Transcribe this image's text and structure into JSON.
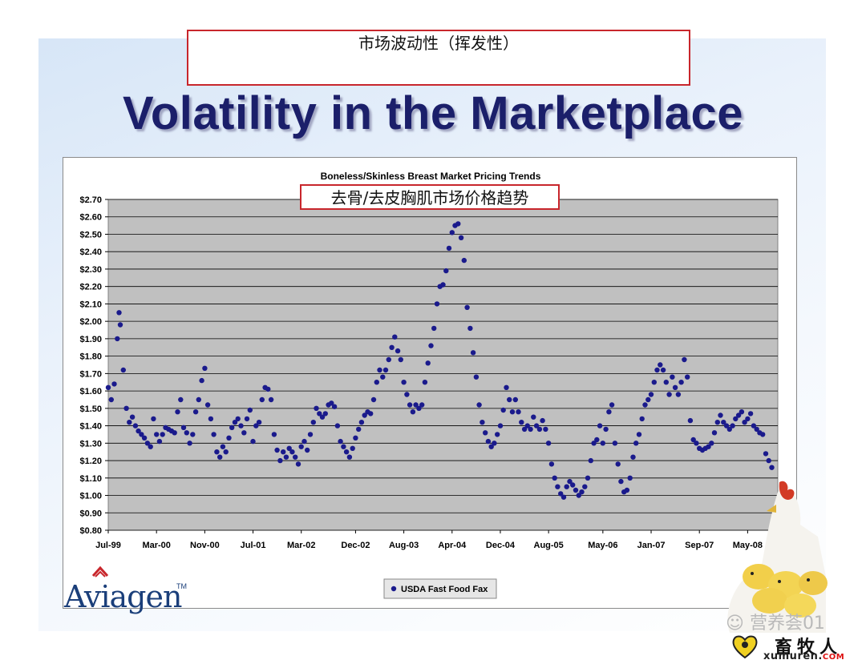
{
  "slide": {
    "cn_heading": "市场波动性（挥发性）",
    "title": "Volatility in the Marketplace",
    "logo": "Aviagen",
    "logo_tm": "TM",
    "watermark": "营养荟01",
    "brand_cn": "畜牧人",
    "brand_url": "xumuren.",
    "brand_url_tld": "COM"
  },
  "colors": {
    "plot_bg": "#c0c0c0",
    "marker": "#1a1a8c",
    "title_text": "#1b1f6a",
    "highlight_box": "#c8262c"
  },
  "chart_data": {
    "type": "scatter",
    "title": "Boneless/Skinless Breast Market Pricing Trends",
    "subtitle_cn": "去骨/去皮胸肌市场价格趋势",
    "ylim": [
      0.8,
      2.7
    ],
    "y_ticks": [
      "$2.70",
      "$2.60",
      "$2.50",
      "$2.40",
      "$2.30",
      "$2.20",
      "$2.10",
      "$2.00",
      "$1.90",
      "$1.80",
      "$1.70",
      "$1.60",
      "$1.50",
      "$1.40",
      "$1.30",
      "$1.20",
      "$1.10",
      "$1.00",
      "$0.90",
      "$0.80"
    ],
    "x_ticks": [
      "Jul-99",
      "Mar-00",
      "Nov-00",
      "Jul-01",
      "Mar-02",
      "Dec-02",
      "Aug-03",
      "Apr-04",
      "Dec-04",
      "Aug-05",
      "May-06",
      "Jan-07",
      "Sep-07",
      "May-08"
    ],
    "x_tick_month_index": [
      0,
      8,
      16,
      24,
      32,
      41,
      49,
      57,
      65,
      73,
      82,
      90,
      98,
      106
    ],
    "xlim_month_index": [
      0,
      111
    ],
    "grid": "horizontal",
    "legend": {
      "position": "bottom-center",
      "label": "USDA Fast Food Fax"
    },
    "series": [
      {
        "name": "USDA Fast Food Fax",
        "points": [
          [
            0,
            1.62
          ],
          [
            0.5,
            1.55
          ],
          [
            1,
            1.64
          ],
          [
            1.5,
            1.9
          ],
          [
            1.8,
            2.05
          ],
          [
            2,
            1.98
          ],
          [
            2.5,
            1.72
          ],
          [
            3,
            1.5
          ],
          [
            3.5,
            1.42
          ],
          [
            4,
            1.45
          ],
          [
            4.5,
            1.4
          ],
          [
            5,
            1.37
          ],
          [
            5.5,
            1.35
          ],
          [
            6,
            1.33
          ],
          [
            6.5,
            1.3
          ],
          [
            7,
            1.28
          ],
          [
            7.5,
            1.44
          ],
          [
            8,
            1.35
          ],
          [
            8.5,
            1.31
          ],
          [
            9,
            1.35
          ],
          [
            9.5,
            1.39
          ],
          [
            10,
            1.38
          ],
          [
            10.5,
            1.37
          ],
          [
            11,
            1.36
          ],
          [
            11.5,
            1.48
          ],
          [
            12,
            1.55
          ],
          [
            12.5,
            1.39
          ],
          [
            13,
            1.36
          ],
          [
            13.5,
            1.3
          ],
          [
            14,
            1.35
          ],
          [
            14.5,
            1.48
          ],
          [
            15,
            1.55
          ],
          [
            15.5,
            1.66
          ],
          [
            16,
            1.73
          ],
          [
            16.5,
            1.52
          ],
          [
            17,
            1.44
          ],
          [
            17.5,
            1.35
          ],
          [
            18,
            1.25
          ],
          [
            18.5,
            1.22
          ],
          [
            19,
            1.28
          ],
          [
            19.5,
            1.25
          ],
          [
            20,
            1.33
          ],
          [
            20.5,
            1.39
          ],
          [
            21,
            1.42
          ],
          [
            21.5,
            1.44
          ],
          [
            22,
            1.4
          ],
          [
            22.5,
            1.36
          ],
          [
            23,
            1.44
          ],
          [
            23.5,
            1.49
          ],
          [
            24,
            1.31
          ],
          [
            24.5,
            1.4
          ],
          [
            25,
            1.42
          ],
          [
            25.5,
            1.55
          ],
          [
            26,
            1.62
          ],
          [
            26.5,
            1.61
          ],
          [
            27,
            1.55
          ],
          [
            27.5,
            1.35
          ],
          [
            28,
            1.26
          ],
          [
            28.5,
            1.2
          ],
          [
            29,
            1.25
          ],
          [
            29.5,
            1.22
          ],
          [
            30,
            1.27
          ],
          [
            30.5,
            1.25
          ],
          [
            31,
            1.22
          ],
          [
            31.5,
            1.18
          ],
          [
            32,
            1.28
          ],
          [
            32.5,
            1.31
          ],
          [
            33,
            1.26
          ],
          [
            33.5,
            1.35
          ],
          [
            34,
            1.42
          ],
          [
            34.5,
            1.5
          ],
          [
            35,
            1.47
          ],
          [
            35.5,
            1.45
          ],
          [
            36,
            1.47
          ],
          [
            36.5,
            1.52
          ],
          [
            37,
            1.53
          ],
          [
            37.5,
            1.51
          ],
          [
            38,
            1.4
          ],
          [
            38.5,
            1.31
          ],
          [
            39,
            1.28
          ],
          [
            39.5,
            1.25
          ],
          [
            40,
            1.22
          ],
          [
            40.5,
            1.27
          ],
          [
            41,
            1.33
          ],
          [
            41.5,
            1.38
          ],
          [
            42,
            1.42
          ],
          [
            42.5,
            1.46
          ],
          [
            43,
            1.48
          ],
          [
            43.5,
            1.47
          ],
          [
            44,
            1.55
          ],
          [
            44.5,
            1.65
          ],
          [
            45,
            1.72
          ],
          [
            45.5,
            1.68
          ],
          [
            46,
            1.72
          ],
          [
            46.5,
            1.78
          ],
          [
            47,
            1.85
          ],
          [
            47.5,
            1.91
          ],
          [
            48,
            1.83
          ],
          [
            48.5,
            1.78
          ],
          [
            49,
            1.65
          ],
          [
            49.5,
            1.58
          ],
          [
            50,
            1.52
          ],
          [
            50.5,
            1.48
          ],
          [
            51,
            1.52
          ],
          [
            51.5,
            1.5
          ],
          [
            52,
            1.52
          ],
          [
            52.5,
            1.65
          ],
          [
            53,
            1.76
          ],
          [
            53.5,
            1.86
          ],
          [
            54,
            1.96
          ],
          [
            54.5,
            2.1
          ],
          [
            55,
            2.2
          ],
          [
            55.5,
            2.21
          ],
          [
            56,
            2.29
          ],
          [
            56.5,
            2.42
          ],
          [
            57,
            2.51
          ],
          [
            57.5,
            2.55
          ],
          [
            58,
            2.56
          ],
          [
            58.5,
            2.48
          ],
          [
            59,
            2.35
          ],
          [
            59.5,
            2.08
          ],
          [
            60,
            1.96
          ],
          [
            60.5,
            1.82
          ],
          [
            61,
            1.68
          ],
          [
            61.5,
            1.52
          ],
          [
            62,
            1.42
          ],
          [
            62.5,
            1.36
          ],
          [
            63,
            1.31
          ],
          [
            63.5,
            1.28
          ],
          [
            64,
            1.3
          ],
          [
            64.5,
            1.35
          ],
          [
            65,
            1.4
          ],
          [
            65.5,
            1.49
          ],
          [
            66,
            1.62
          ],
          [
            66.5,
            1.55
          ],
          [
            67,
            1.48
          ],
          [
            67.5,
            1.55
          ],
          [
            68,
            1.48
          ],
          [
            68.5,
            1.42
          ],
          [
            69,
            1.38
          ],
          [
            69.5,
            1.4
          ],
          [
            70,
            1.38
          ],
          [
            70.5,
            1.45
          ],
          [
            71,
            1.4
          ],
          [
            71.5,
            1.38
          ],
          [
            72,
            1.43
          ],
          [
            72.5,
            1.38
          ],
          [
            73,
            1.3
          ],
          [
            73.5,
            1.18
          ],
          [
            74,
            1.1
          ],
          [
            74.5,
            1.05
          ],
          [
            75,
            1.01
          ],
          [
            75.5,
            0.99
          ],
          [
            76,
            1.05
          ],
          [
            76.5,
            1.08
          ],
          [
            77,
            1.06
          ],
          [
            77.5,
            1.03
          ],
          [
            78,
            1.0
          ],
          [
            78.5,
            1.02
          ],
          [
            79,
            1.05
          ],
          [
            79.5,
            1.1
          ],
          [
            80,
            1.2
          ],
          [
            80.5,
            1.3
          ],
          [
            81,
            1.32
          ],
          [
            81.5,
            1.4
          ],
          [
            82,
            1.3
          ],
          [
            82.5,
            1.38
          ],
          [
            83,
            1.48
          ],
          [
            83.5,
            1.52
          ],
          [
            84,
            1.3
          ],
          [
            84.5,
            1.18
          ],
          [
            85,
            1.08
          ],
          [
            85.5,
            1.02
          ],
          [
            86,
            1.03
          ],
          [
            86.5,
            1.1
          ],
          [
            87,
            1.22
          ],
          [
            87.5,
            1.3
          ],
          [
            88,
            1.35
          ],
          [
            88.5,
            1.44
          ],
          [
            89,
            1.52
          ],
          [
            89.5,
            1.55
          ],
          [
            90,
            1.58
          ],
          [
            90.5,
            1.65
          ],
          [
            91,
            1.72
          ],
          [
            91.5,
            1.75
          ],
          [
            92,
            1.72
          ],
          [
            92.5,
            1.65
          ],
          [
            93,
            1.58
          ],
          [
            93.5,
            1.68
          ],
          [
            94,
            1.62
          ],
          [
            94.5,
            1.58
          ],
          [
            95,
            1.65
          ],
          [
            95.5,
            1.78
          ],
          [
            96,
            1.68
          ],
          [
            96.5,
            1.43
          ],
          [
            97,
            1.32
          ],
          [
            97.5,
            1.3
          ],
          [
            98,
            1.27
          ],
          [
            98.5,
            1.26
          ],
          [
            99,
            1.27
          ],
          [
            99.5,
            1.28
          ],
          [
            100,
            1.3
          ],
          [
            100.5,
            1.36
          ],
          [
            101,
            1.42
          ],
          [
            101.5,
            1.46
          ],
          [
            102,
            1.42
          ],
          [
            102.5,
            1.4
          ],
          [
            103,
            1.38
          ],
          [
            103.5,
            1.4
          ],
          [
            104,
            1.44
          ],
          [
            104.5,
            1.46
          ],
          [
            105,
            1.48
          ],
          [
            105.5,
            1.42
          ],
          [
            106,
            1.44
          ],
          [
            106.5,
            1.47
          ],
          [
            107,
            1.4
          ],
          [
            107.5,
            1.38
          ],
          [
            108,
            1.36
          ],
          [
            108.5,
            1.35
          ],
          [
            109,
            1.24
          ],
          [
            109.5,
            1.2
          ],
          [
            110,
            1.16
          ]
        ]
      }
    ]
  }
}
